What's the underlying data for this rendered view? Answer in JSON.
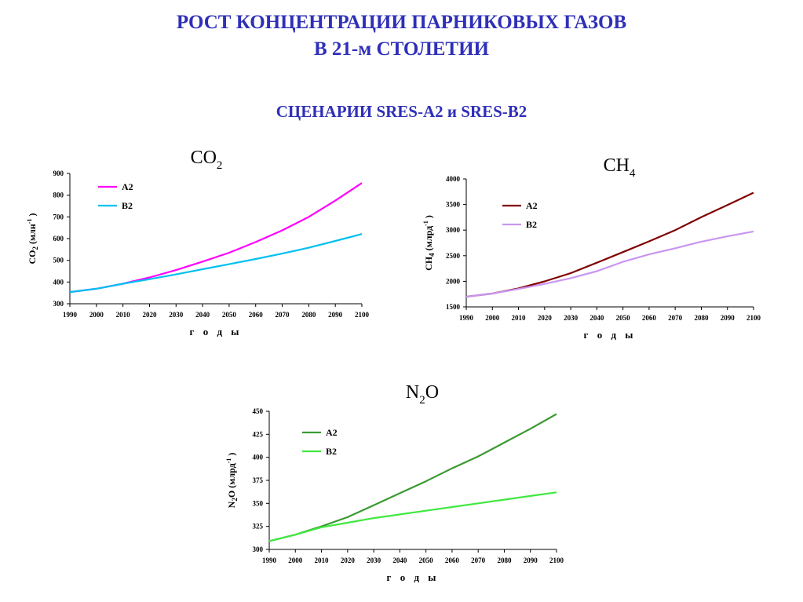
{
  "header": {
    "title_line1": "РОСТ КОНЦЕНТРАЦИИ ПАРНИКОВЫХ ГАЗОВ",
    "title_line2": "В 21-м СТОЛЕТИИ",
    "subtitle": "СЦЕНАРИИ SRES-A2 и SRES-B2"
  },
  "chart_data": [
    {
      "id": "co2",
      "type": "line",
      "title_main": "CO",
      "title_sub": "2",
      "ylabel": "CO2 (млн-1)",
      "ylabel_parts": {
        "main": "CO",
        "sub": "2",
        "rest": " (млн",
        "sup": "-1",
        "end": ")"
      },
      "xlabel": "г о д ы",
      "x": [
        1990,
        2000,
        2010,
        2020,
        2030,
        2040,
        2050,
        2060,
        2070,
        2080,
        2090,
        2100
      ],
      "ylim": [
        300,
        900
      ],
      "yticks": [
        300,
        400,
        500,
        600,
        700,
        800,
        900
      ],
      "grid": false,
      "legend": "top-left",
      "series": [
        {
          "name": "A2",
          "color": "#ff00ff",
          "values": [
            354,
            369,
            392,
            421,
            455,
            494,
            535,
            584,
            638,
            700,
            775,
            856
          ]
        },
        {
          "name": "B2",
          "color": "#00c0f0",
          "values": [
            354,
            369,
            392,
            413,
            435,
            459,
            482,
            506,
            531,
            558,
            589,
            621
          ]
        }
      ]
    },
    {
      "id": "ch4",
      "type": "line",
      "title_main": "CH",
      "title_sub": "4",
      "ylabel": "CH4 (млрд-1)",
      "ylabel_parts": {
        "main": "CH",
        "sub": "4",
        "rest": " (млрд",
        "sup": "-1",
        "end": ")"
      },
      "xlabel": "г о д ы",
      "x": [
        1990,
        2000,
        2010,
        2020,
        2030,
        2040,
        2050,
        2060,
        2070,
        2080,
        2090,
        2100
      ],
      "ylim": [
        1500,
        4000
      ],
      "yticks": [
        1500,
        2000,
        2500,
        3000,
        3500,
        4000
      ],
      "grid": false,
      "legend": "top-left",
      "series": [
        {
          "name": "A2",
          "color": "#800000",
          "values": [
            1700,
            1760,
            1862,
            1998,
            2160,
            2363,
            2570,
            2780,
            3000,
            3255,
            3490,
            3731
          ]
        },
        {
          "name": "B2",
          "color": "#c896f0",
          "values": [
            1700,
            1760,
            1850,
            1950,
            2062,
            2198,
            2380,
            2526,
            2645,
            2775,
            2879,
            2974
          ]
        }
      ]
    },
    {
      "id": "n2o",
      "type": "line",
      "title_main": "N",
      "title_sub": "2",
      "title_end": "O",
      "ylabel": "N2O (млрд-1)",
      "ylabel_parts": {
        "main": "N",
        "sub": "2",
        "rest": "O (млрд",
        "sup": "-1",
        "end": ")"
      },
      "xlabel": "г о д ы",
      "x": [
        1990,
        2000,
        2010,
        2020,
        2030,
        2040,
        2050,
        2060,
        2070,
        2080,
        2090,
        2100
      ],
      "ylim": [
        300,
        450
      ],
      "yticks": [
        300,
        325,
        350,
        375,
        400,
        425,
        450
      ],
      "grid": false,
      "legend": "top-left",
      "series": [
        {
          "name": "A2",
          "color": "#3a9a30",
          "values": [
            309,
            316,
            325,
            335,
            348,
            361,
            374,
            388,
            401,
            416,
            431,
            447
          ]
        },
        {
          "name": "B2",
          "color": "#40e840",
          "values": [
            309,
            316,
            324,
            329,
            334,
            338,
            342,
            346,
            350,
            354,
            358,
            362
          ]
        }
      ]
    }
  ]
}
